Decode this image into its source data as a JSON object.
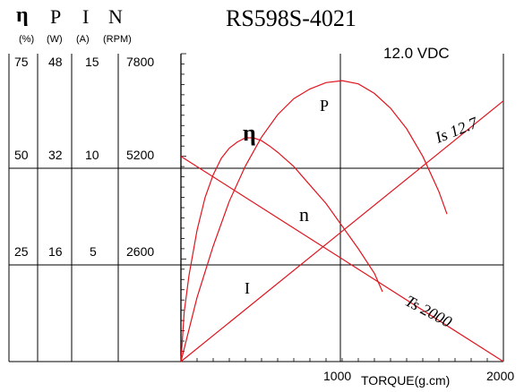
{
  "header": {
    "symbols": [
      "η",
      "P",
      "I",
      "N"
    ],
    "units": [
      "(%)",
      "(W)",
      "(A)",
      "(RPM)"
    ],
    "model": "RS598S-4021",
    "voltage": "12.0 VDC"
  },
  "colors": {
    "curve": "#e0141e",
    "grid": "#000000",
    "background": "#ffffff"
  },
  "chart_data": {
    "type": "line",
    "title": "RS598S-4021",
    "xlabel": "TORQUE(g.cm)",
    "xlim": [
      0,
      2000
    ],
    "x_ticks": [
      1000,
      2000
    ],
    "grid": true,
    "left_axes": {
      "columns": [
        {
          "symbol": "η",
          "unit": "(%)",
          "ticks": [
            "75",
            "50",
            "25"
          ]
        },
        {
          "symbol": "P",
          "unit": "(W)",
          "ticks": [
            "48",
            "32",
            "16"
          ]
        },
        {
          "symbol": "I",
          "unit": "(A)",
          "ticks": [
            "15",
            "10",
            "5"
          ]
        },
        {
          "symbol": "N",
          "unit": "(RPM)",
          "ticks": [
            "7800",
            "5200",
            "2600"
          ]
        }
      ],
      "ylim": {
        "η": [
          0,
          75
        ],
        "P": [
          0,
          48
        ],
        "I": [
          0,
          15
        ],
        "N": [
          0,
          7800
        ]
      }
    },
    "series": [
      {
        "name": "n",
        "axis": "N",
        "x": [
          0,
          2000
        ],
        "y": [
          5200,
          0
        ]
      },
      {
        "name": "I",
        "axis": "I",
        "x": [
          0,
          2000
        ],
        "y": [
          0,
          12.7
        ]
      },
      {
        "name": "P",
        "axis": "P",
        "x": [
          0,
          100,
          200,
          300,
          400,
          500,
          600,
          700,
          800,
          900,
          1000,
          1100,
          1200,
          1300,
          1400,
          1500,
          1600,
          1650
        ],
        "y": [
          0,
          10,
          18,
          25,
          30.5,
          35,
          38.5,
          41,
          42.5,
          43.5,
          43.8,
          43.3,
          41.8,
          39.5,
          36.3,
          32,
          26.5,
          23
        ]
      },
      {
        "name": "η",
        "axis": "η",
        "x": [
          0,
          20,
          50,
          100,
          150,
          200,
          250,
          300,
          350,
          400,
          450,
          500,
          550,
          600,
          700,
          800,
          900,
          1000,
          1100,
          1200,
          1250
        ],
        "y": [
          0,
          12,
          21,
          32,
          40,
          45.5,
          49.5,
          52,
          53.5,
          54.5,
          54.5,
          53.8,
          52.5,
          51,
          47.5,
          43,
          38.5,
          33,
          27.5,
          21.5,
          17
        ]
      }
    ],
    "annotations": [
      "P",
      "η",
      "n",
      "I",
      "Is 12.7",
      "Ts 2000"
    ]
  },
  "labels": {
    "x_1000": "1000",
    "x_2000": "2000",
    "xlabel": "TORQUE(g.cm)",
    "is": "Is 12.7",
    "ts": "Ts 2000",
    "p": "P",
    "eta": "η",
    "n": "n",
    "i": "I"
  }
}
